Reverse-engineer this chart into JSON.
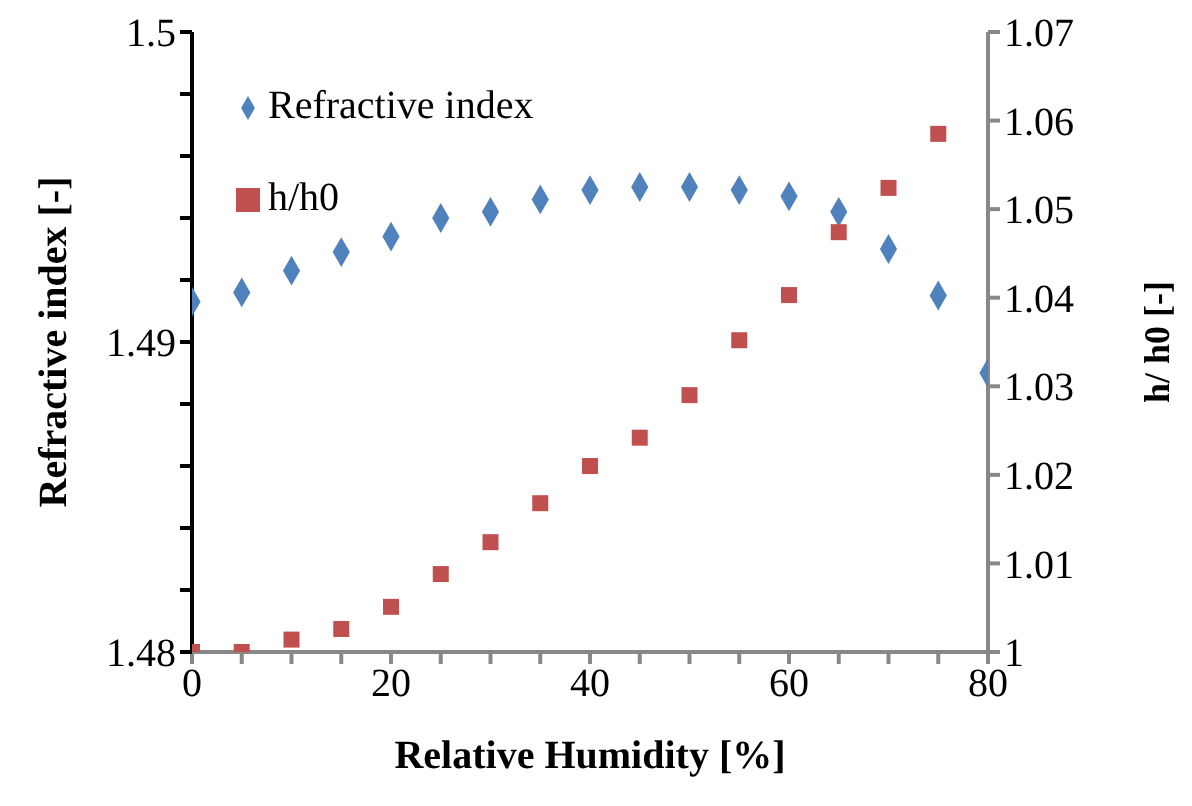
{
  "chart_data": {
    "type": "scatter",
    "xlabel": "Relative Humidity [%]",
    "ylabel": "Refractive index [-]",
    "y2label": "h/ h0 [-]",
    "x": [
      0,
      5,
      10,
      15,
      20,
      25,
      30,
      35,
      40,
      45,
      50,
      55,
      60,
      65,
      70,
      75,
      80
    ],
    "series": [
      {
        "name": "Refractive index",
        "color": "#4f81bd",
        "marker": "diamond",
        "values": [
          1.4913,
          1.4916,
          1.4923,
          1.4929,
          1.4934,
          1.494,
          1.4942,
          1.4946,
          1.4949,
          1.495,
          1.495,
          1.4949,
          1.4947,
          1.4942,
          1.493,
          1.4915,
          1.489
        ]
      },
      {
        "name": "h/h0",
        "color": "#c0504d",
        "marker": "square",
        "axis": "y2",
        "values": [
          1.0,
          1.0,
          1.0014,
          1.0026,
          1.0051,
          1.0088,
          1.0124,
          1.0168,
          1.021,
          1.0242,
          1.029,
          1.0352,
          1.0403,
          1.0474,
          1.0524,
          1.0585,
          null
        ]
      }
    ],
    "xlim": [
      0,
      80
    ],
    "xticks": [
      0,
      {
        "value": 5,
        "label": null
      },
      {
        "value": 10,
        "label": null
      },
      {
        "value": 15,
        "label": null
      },
      20,
      {
        "value": 25,
        "label": null
      },
      {
        "value": 30,
        "label": null
      },
      {
        "value": 35,
        "label": null
      },
      40,
      {
        "value": 45,
        "label": null
      },
      {
        "value": 50,
        "label": null
      },
      {
        "value": 55,
        "label": null
      },
      60,
      {
        "value": 65,
        "label": null
      },
      {
        "value": 70,
        "label": null
      },
      {
        "value": 75,
        "label": null
      },
      80
    ],
    "ylim": [
      1.48,
      1.5
    ],
    "yticks": [
      1.48,
      {
        "value": 1.482,
        "label": null
      },
      {
        "value": 1.484,
        "label": null
      },
      {
        "value": 1.486,
        "label": null
      },
      {
        "value": 1.488,
        "label": null
      },
      1.49,
      {
        "value": 1.492,
        "label": null
      },
      {
        "value": 1.494,
        "label": null
      },
      {
        "value": 1.496,
        "label": null
      },
      {
        "value": 1.498,
        "label": null
      },
      1.5
    ],
    "y2lim": [
      1,
      1.07
    ],
    "y2ticks": [
      1,
      1.01,
      1.02,
      1.03,
      1.04,
      1.05,
      1.06,
      1.07
    ],
    "legend": "top left",
    "grid": false
  }
}
